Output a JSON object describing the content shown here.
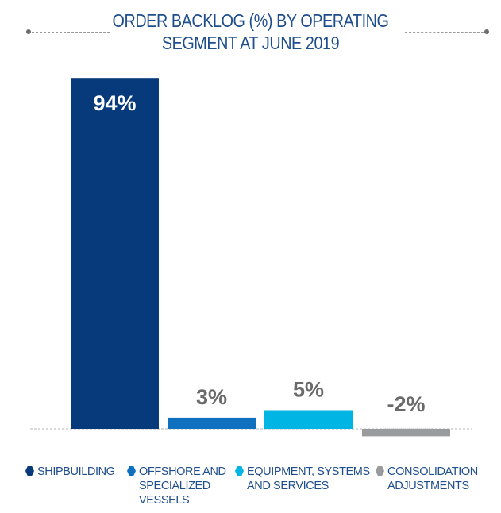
{
  "chart_data": {
    "type": "bar",
    "title_lines": [
      "ORDER BACKLOG (%) BY OPERATING",
      "SEGMENT AT  JUNE 2019"
    ],
    "categories": [
      "Shipbuilding",
      "Offshore and Specialized Vessels",
      "Equipment, Systems and Services",
      "Consolidation Adjustments"
    ],
    "values": [
      94,
      3,
      5,
      -2
    ],
    "value_labels": [
      "94%",
      "3%",
      "5%",
      "-2%"
    ],
    "colors": [
      "#063a7a",
      "#1070c0",
      "#00b4e4",
      "#9a9b9d"
    ],
    "label_colors": [
      "#ffffff",
      "#6a6a6a",
      "#6a6a6a",
      "#6a6a6a"
    ],
    "ylim": [
      -4,
      94
    ],
    "baseline_dashed": true,
    "grid": false,
    "legend_position": "bottom",
    "legend": [
      {
        "label": "SHIPBUILDING",
        "color": "#063a7a"
      },
      {
        "label": "OFFSHORE AND\nSPECIALIZED\nVESSELS",
        "color": "#1070c0"
      },
      {
        "label": "EQUIPMENT, SYSTEMS\nAND SERVICES",
        "color": "#00b4e4"
      },
      {
        "label": "CONSOLIDATION\nADJUSTMENTS",
        "color": "#9a9b9d"
      }
    ]
  }
}
